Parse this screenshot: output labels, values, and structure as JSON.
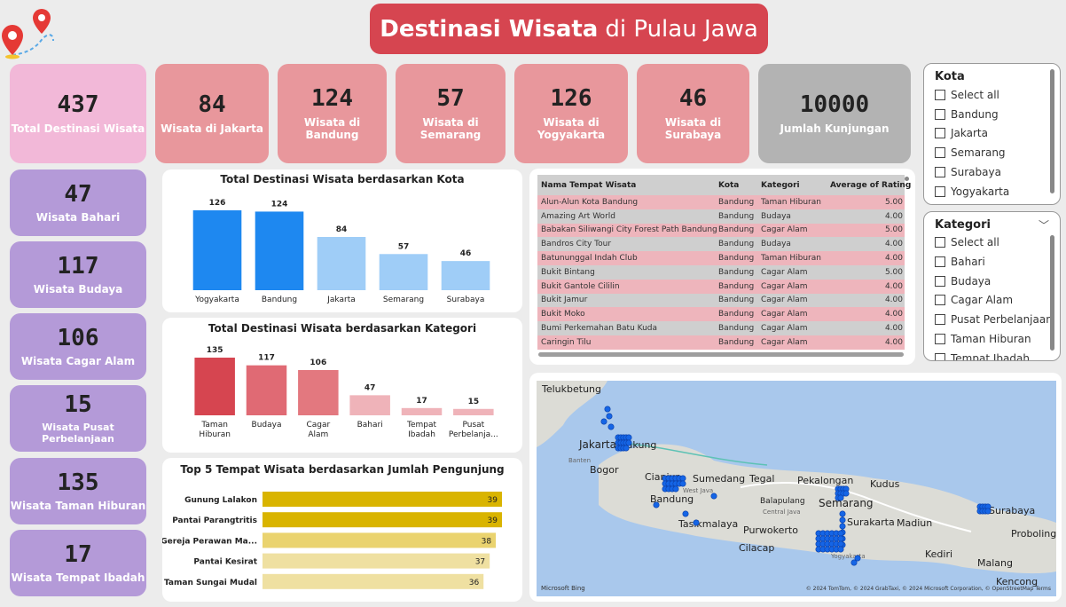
{
  "header": {
    "title_bold": "Destinasi Wisata",
    "title_rest": "di Pulau Jawa"
  },
  "kpis_top": [
    {
      "value": "437",
      "label": "Total Destinasi Wisata"
    },
    {
      "value": "84",
      "label": "Wisata di Jakarta"
    },
    {
      "value": "124",
      "label": "Wisata di Bandung"
    },
    {
      "value": "57",
      "label": "Wisata di Semarang"
    },
    {
      "value": "126",
      "label": "Wisata di Yogyakarta"
    },
    {
      "value": "46",
      "label": "Wisata di Surabaya"
    },
    {
      "value": "10000",
      "label": "Jumlah Kunjungan"
    }
  ],
  "kpis_side": [
    {
      "value": "47",
      "label": "Wisata Bahari"
    },
    {
      "value": "117",
      "label": "Wisata Budaya"
    },
    {
      "value": "106",
      "label": "Wisata Cagar Alam"
    },
    {
      "value": "15",
      "label": "Wisata Pusat Perbelanjaan"
    },
    {
      "value": "135",
      "label": "Wisata Taman Hiburan"
    },
    {
      "value": "17",
      "label": "Wisata Tempat Ibadah"
    }
  ],
  "chart_data": [
    {
      "type": "bar",
      "title": "Total Destinasi Wisata berdasarkan Kota",
      "categories": [
        "Yogyakarta",
        "Bandung",
        "Jakarta",
        "Semarang",
        "Surabaya"
      ],
      "values": [
        126,
        124,
        84,
        57,
        46
      ],
      "colors": [
        "#1e88f0",
        "#1e88f0",
        "#9fcdf7",
        "#9fcdf7",
        "#9fcdf7"
      ],
      "ylim": [
        0,
        126
      ]
    },
    {
      "type": "bar",
      "title": "Total Destinasi Wisata berdasarkan Kategori",
      "categories": [
        "Taman Hiburan",
        "Budaya",
        "Cagar Alam",
        "Bahari",
        "Tempat Ibadah",
        "Pusat Perbelanja..."
      ],
      "values": [
        135,
        117,
        106,
        47,
        17,
        15
      ],
      "colors": [
        "#d64550",
        "#e06a74",
        "#e3787f",
        "#efb3b9",
        "#efb3b9",
        "#efb3b9"
      ],
      "ylim": [
        0,
        135
      ]
    },
    {
      "type": "bar",
      "orientation": "horizontal",
      "title": "Top 5 Tempat Wisata berdasarkan Jumlah Pengunjung",
      "categories": [
        "Gunung Lalakon",
        "Pantai Parangtritis",
        "Gereja Perawan Ma...",
        "Pantai Kesirat",
        "Taman Sungai Mudal"
      ],
      "values": [
        39,
        39,
        38,
        37,
        36
      ],
      "colors": [
        "#d9b400",
        "#d9b400",
        "#ead36f",
        "#efe0a1",
        "#efe0a1"
      ],
      "xlim": [
        0,
        39
      ]
    }
  ],
  "table": {
    "headers": [
      "Nama Tempat Wisata",
      "Kota",
      "Kategori",
      "Average of Rating"
    ],
    "rows": [
      [
        "Alun-Alun Kota Bandung",
        "Bandung",
        "Taman Hiburan",
        "5.00"
      ],
      [
        "Amazing Art World",
        "Bandung",
        "Budaya",
        "4.00"
      ],
      [
        "Babakan Siliwangi City Forest Path Bandung",
        "Bandung",
        "Cagar Alam",
        "5.00"
      ],
      [
        "Bandros City Tour",
        "Bandung",
        "Budaya",
        "4.00"
      ],
      [
        "Batununggal Indah Club",
        "Bandung",
        "Taman Hiburan",
        "4.00"
      ],
      [
        "Bukit Bintang",
        "Bandung",
        "Cagar Alam",
        "5.00"
      ],
      [
        "Bukit Gantole Cililin",
        "Bandung",
        "Cagar Alam",
        "4.00"
      ],
      [
        "Bukit Jamur",
        "Bandung",
        "Cagar Alam",
        "4.00"
      ],
      [
        "Bukit Moko",
        "Bandung",
        "Cagar Alam",
        "4.00"
      ],
      [
        "Bumi Perkemahan Batu Kuda",
        "Bandung",
        "Cagar Alam",
        "4.00"
      ],
      [
        "Caringin Tilu",
        "Bandung",
        "Cagar Alam",
        "4.00"
      ]
    ]
  },
  "slicer_kota": {
    "title": "Kota",
    "items": [
      "Select all",
      "Bandung",
      "Jakarta",
      "Semarang",
      "Surabaya",
      "Yogyakarta"
    ]
  },
  "slicer_kategori": {
    "title": "Kategori",
    "items": [
      "Select all",
      "Bahari",
      "Budaya",
      "Cagar Alam",
      "Pusat Perbelanjaan",
      "Taman Hiburan",
      "Tempat Ibadah"
    ]
  },
  "map": {
    "labels": [
      "Telukbetung",
      "Jakarta",
      "Cakung",
      "Bogor",
      "Cianjur",
      "Sumedang",
      "Tegal",
      "Pekalongan",
      "Kudus",
      "Bandung",
      "Balapulang",
      "Semarang",
      "Surakarta",
      "Madiun",
      "Surabaya",
      "Tasikmalaya",
      "Purwokerto",
      "Cilacap",
      "Probolinggo",
      "Kediri",
      "Malang",
      "Kencong",
      "Banten",
      "West Java",
      "Central Java",
      "Yogyakarta"
    ],
    "brand": "Microsoft Bing",
    "attribution": "© 2024 TomTom, © 2024 GrabTaxi, © 2024 Microsoft Corporation, © OpenStreetMap  Terms"
  }
}
